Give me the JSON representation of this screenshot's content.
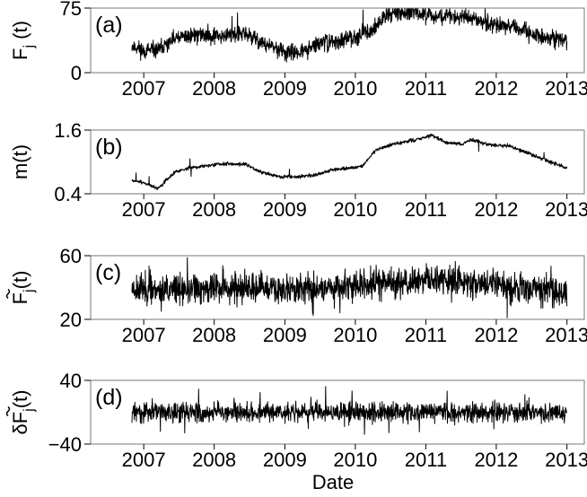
{
  "figure": {
    "xlabel": "Date",
    "x_tick_labels": [
      "2007",
      "2008",
      "2009",
      "2010",
      "2011",
      "2012",
      "2013"
    ]
  },
  "chart_data": [
    {
      "type": "line",
      "panel_label": "(a)",
      "ylabel_main": "F",
      "ylabel_sub": "j",
      "ylabel_tail": " (t)",
      "yticks": [
        0,
        75
      ],
      "ytick_labels": [
        "0",
        "75"
      ],
      "ylim": [
        0,
        75
      ],
      "xlim": [
        "2006-04-01",
        "2013-04-01"
      ],
      "line_color": "#000000",
      "series": [
        {
          "x_start": "2006-11-01",
          "x_end": "2013-01-01",
          "anchors": [
            [
              0.0,
              31
            ],
            [
              0.03,
              25
            ],
            [
              0.06,
              26
            ],
            [
              0.1,
              39
            ],
            [
              0.14,
              44
            ],
            [
              0.2,
              43
            ],
            [
              0.26,
              45
            ],
            [
              0.31,
              32
            ],
            [
              0.36,
              22
            ],
            [
              0.4,
              26
            ],
            [
              0.44,
              36
            ],
            [
              0.48,
              36
            ],
            [
              0.52,
              44
            ],
            [
              0.55,
              48
            ],
            [
              0.59,
              70
            ],
            [
              0.64,
              70
            ],
            [
              0.7,
              66
            ],
            [
              0.75,
              65
            ],
            [
              0.8,
              61
            ],
            [
              0.87,
              53
            ],
            [
              0.93,
              43
            ],
            [
              1.0,
              37
            ]
          ],
          "noise": 7,
          "spike_rate": 0.006,
          "spike_size": 22,
          "seed": 11
        }
      ]
    },
    {
      "type": "line",
      "panel_label": "(b)",
      "ylabel_main": "m(t)",
      "ylabel_sub": "",
      "ylabel_tail": "",
      "yticks": [
        0.4,
        1.6
      ],
      "ytick_labels": [
        "0.4",
        "1.6"
      ],
      "ylim": [
        0.4,
        1.6
      ],
      "xlim": [
        "2006-04-01",
        "2013-04-01"
      ],
      "line_color": "#000000",
      "series": [
        {
          "x_start": "2006-11-01",
          "x_end": "2013-01-01",
          "anchors": [
            [
              0.0,
              0.65
            ],
            [
              0.03,
              0.6
            ],
            [
              0.06,
              0.5
            ],
            [
              0.1,
              0.82
            ],
            [
              0.14,
              0.9
            ],
            [
              0.2,
              0.96
            ],
            [
              0.26,
              0.96
            ],
            [
              0.3,
              0.8
            ],
            [
              0.34,
              0.72
            ],
            [
              0.38,
              0.72
            ],
            [
              0.42,
              0.75
            ],
            [
              0.46,
              0.85
            ],
            [
              0.5,
              0.88
            ],
            [
              0.53,
              0.92
            ],
            [
              0.56,
              1.22
            ],
            [
              0.6,
              1.33
            ],
            [
              0.66,
              1.43
            ],
            [
              0.69,
              1.5
            ],
            [
              0.72,
              1.37
            ],
            [
              0.76,
              1.33
            ],
            [
              0.78,
              1.42
            ],
            [
              0.82,
              1.32
            ],
            [
              0.87,
              1.3
            ],
            [
              0.93,
              1.1
            ],
            [
              1.0,
              0.88
            ]
          ],
          "noise": 0.025,
          "spike_rate": 0.004,
          "spike_size": 0.2,
          "seed": 7
        }
      ]
    },
    {
      "type": "line",
      "panel_label": "(c)",
      "ylabel_main": "F",
      "ylabel_sub": "j",
      "ylabel_tail": "(t)",
      "ylabel_tilde": true,
      "yticks": [
        20,
        60
      ],
      "ytick_labels": [
        "20",
        "60"
      ],
      "ylim": [
        20,
        60
      ],
      "xlim": [
        "2006-04-01",
        "2013-04-01"
      ],
      "line_color": "#000000",
      "series": [
        {
          "x_start": "2006-11-01",
          "x_end": "2013-01-01",
          "anchors": [
            [
              0.0,
              40
            ],
            [
              0.1,
              38
            ],
            [
              0.2,
              40
            ],
            [
              0.3,
              39
            ],
            [
              0.4,
              39
            ],
            [
              0.5,
              41
            ],
            [
              0.6,
              43
            ],
            [
              0.7,
              45
            ],
            [
              0.8,
              43
            ],
            [
              0.9,
              40
            ],
            [
              1.0,
              37
            ]
          ],
          "noise": 7,
          "spike_rate": 0.01,
          "spike_size": 14,
          "seed": 23
        }
      ]
    },
    {
      "type": "line",
      "panel_label": "(d)",
      "ylabel_main": "δF",
      "ylabel_sub": "j",
      "ylabel_tail": "(t)",
      "ylabel_tilde": true,
      "yticks": [
        -40,
        40
      ],
      "ytick_labels": [
        "−40",
        "40"
      ],
      "ylim": [
        -40,
        40
      ],
      "xlim": [
        "2006-04-01",
        "2013-04-01"
      ],
      "line_color": "#000000",
      "series": [
        {
          "x_start": "2006-11-01",
          "x_end": "2013-01-01",
          "anchors": [
            [
              0.0,
              0
            ],
            [
              1.0,
              0
            ]
          ],
          "noise": 9,
          "spike_rate": 0.012,
          "spike_size": 24,
          "seed": 31
        }
      ]
    }
  ]
}
